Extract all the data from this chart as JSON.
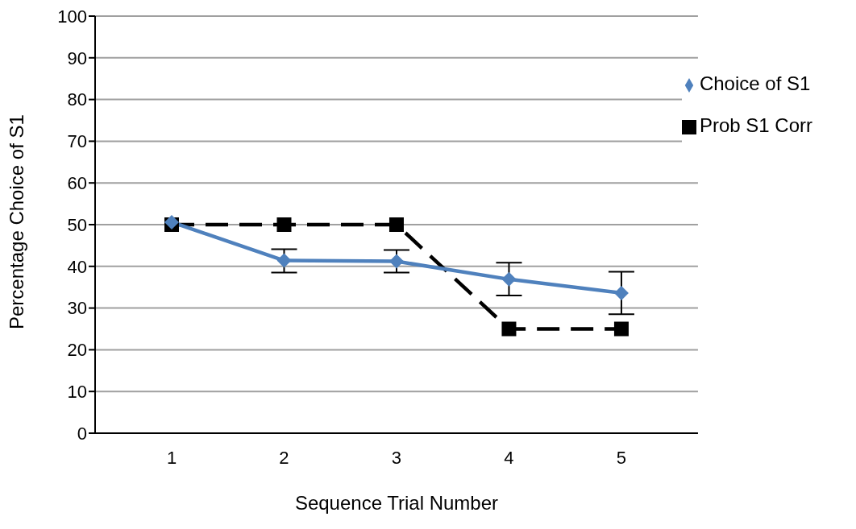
{
  "chart_data": {
    "type": "line",
    "xlabel": "Sequence Trial Number",
    "ylabel": "Percentage Choice of S1",
    "categories": [
      "1",
      "2",
      "3",
      "4",
      "5"
    ],
    "series": [
      {
        "name": "Choice of S1",
        "color": "#4f81bd",
        "marker": "diamond",
        "line_style": "solid",
        "values": [
          50.6,
          41.4,
          41.2,
          36.9,
          33.6
        ],
        "errors": [
          null,
          [
            38.5,
            44.1
          ],
          [
            38.5,
            43.9
          ],
          [
            33.0,
            40.9
          ],
          [
            28.5,
            38.7
          ]
        ]
      },
      {
        "name": "Prob S1 Corr",
        "color": "#000000",
        "marker": "square",
        "line_style": "dashed",
        "values": [
          50,
          50,
          50,
          25,
          25
        ]
      }
    ],
    "ylim": [
      0,
      100
    ],
    "yticks": [
      0,
      10,
      20,
      30,
      40,
      50,
      60,
      70,
      80,
      90,
      100
    ],
    "grid": "y",
    "legend": "top right"
  }
}
